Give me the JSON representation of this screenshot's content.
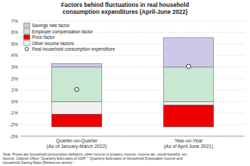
{
  "chart_data": {
    "type": "bar",
    "title": "Factors behind fluctuations in real household\nconsumption expenditures (April-June 2022)",
    "categories": [
      "Quarter-on-Quarter\n(As of January-March 2022)",
      "Year-on-Year\n(As of April-June 2021)"
    ],
    "series": [
      {
        "name": "Savings rate factor",
        "color": "#ccc8e8",
        "values": [
          0.3,
          2.55
        ]
      },
      {
        "name": "Employer compensation factor",
        "color": "#c8e8d4",
        "values": [
          3.0,
          3.0
        ]
      },
      {
        "name": "Price factor",
        "color": "#ee0000",
        "values": [
          -1.1,
          -1.9
        ]
      },
      {
        "name": "Other income factors",
        "color": "#f0f0f0",
        "values": [
          -1.1,
          -0.3
        ]
      },
      {
        "name": "Real household consumption expenditure",
        "type": "scatter",
        "marker": "circle",
        "values": [
          1.05,
          3.05
        ]
      }
    ],
    "stacked": true,
    "ylim": [
      -3,
      7
    ],
    "yticks": [
      {
        "value": -3,
        "label": "-3%"
      },
      {
        "value": -2,
        "label": "-2%"
      },
      {
        "value": -1,
        "label": "-1%"
      },
      {
        "value": 0,
        "label": "0%"
      },
      {
        "value": 1,
        "label": "1%"
      },
      {
        "value": 2,
        "label": "2%"
      },
      {
        "value": 3,
        "label": "3%"
      },
      {
        "value": 4,
        "label": "4%"
      },
      {
        "value": 5,
        "label": "5%"
      },
      {
        "value": 6,
        "label": "6%"
      },
      {
        "value": 7,
        "label": "7%"
      }
    ],
    "grid": true,
    "legend": "upper left",
    "annotations": [
      "Note: Prices are household consumption deflators, other income is property income, income tax, social benefits, etc.",
      "Source: Cabinet Office “Quarterly Estimates of GDP;” “Quarterly Estimates of Household Disposable Income and",
      "Household Saving Ratio (Reference series).”"
    ]
  }
}
